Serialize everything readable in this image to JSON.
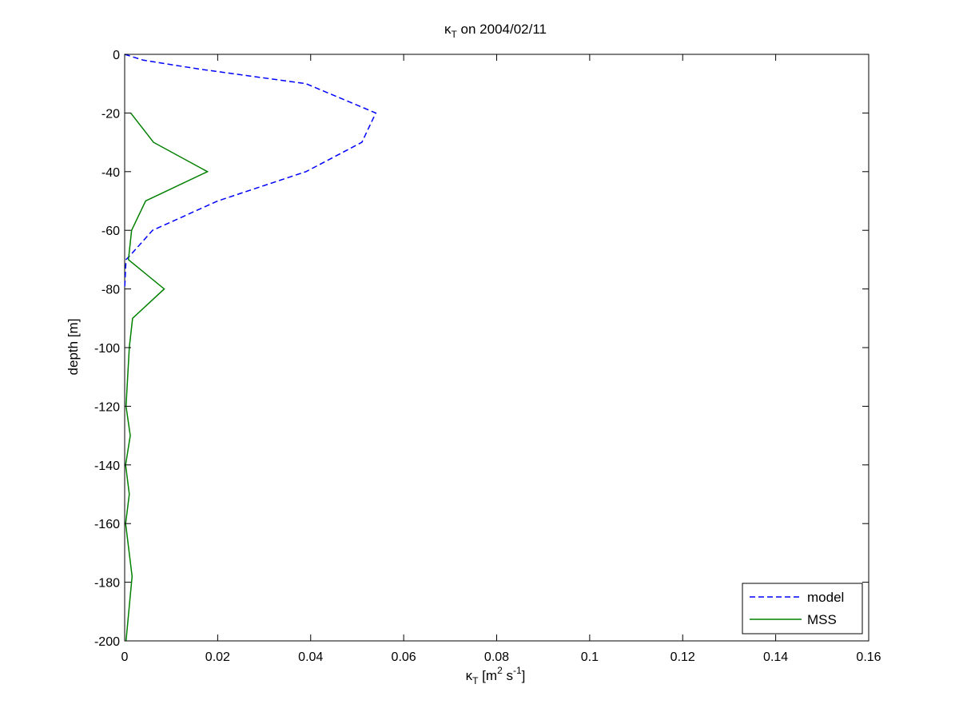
{
  "chart_data": {
    "type": "line",
    "title": {
      "symbol": "κ",
      "sub": "T",
      "rest": " on 2004/02/11"
    },
    "xlabel": {
      "symbol": "κ",
      "sub": "T",
      "unit_pre": " [m",
      "sup1": "2",
      "mid": " s",
      "sup2": "-1",
      "unit_post": "]"
    },
    "ylabel": "depth [m]",
    "xlim": [
      0,
      0.16
    ],
    "ylim": [
      -200,
      0
    ],
    "xticks": [
      0,
      0.02,
      0.04,
      0.06,
      0.08,
      0.1,
      0.12,
      0.14,
      0.16
    ],
    "xtick_labels": [
      "0",
      "0.02",
      "0.04",
      "0.06",
      "0.08",
      "0.1",
      "0.12",
      "0.14",
      "0.16"
    ],
    "yticks": [
      0,
      -20,
      -40,
      -60,
      -80,
      -100,
      -120,
      -140,
      -160,
      -180,
      -200
    ],
    "ytick_labels": [
      "0",
      "-20",
      "-40",
      "-60",
      "-80",
      "-100",
      "-120",
      "-140",
      "-160",
      "-180",
      "-200"
    ],
    "grid": false,
    "legend_position": "bottom-right",
    "series": [
      {
        "name": "model",
        "color": "#0000ff",
        "style": "dashed",
        "x": [
          0.0,
          0.004,
          0.016,
          0.039,
          0.054,
          0.051,
          0.039,
          0.02,
          0.006,
          0.0015,
          0.0003,
          0.0
        ],
        "y": [
          0,
          -2,
          -5,
          -10,
          -20,
          -30,
          -40,
          -50,
          -60,
          -68,
          -70,
          -80
        ]
      },
      {
        "name": "MSS",
        "color": "#008000",
        "style": "solid",
        "x": [
          0.0013,
          0.0062,
          0.0178,
          0.0045,
          0.0015,
          0.0008,
          0.0085,
          0.0017,
          0.001,
          0.0003,
          0.0012,
          0.0002,
          0.001,
          0.0002,
          0.0016,
          0.0003
        ],
        "y": [
          -20,
          -30,
          -40,
          -50,
          -60,
          -70,
          -80,
          -90,
          -100,
          -120,
          -130,
          -140,
          -150,
          -160,
          -178,
          -200
        ]
      }
    ]
  }
}
